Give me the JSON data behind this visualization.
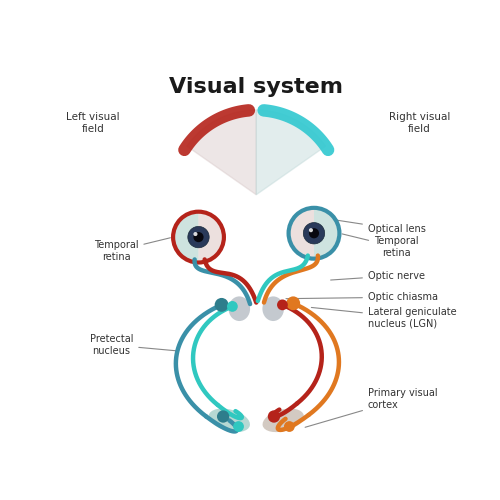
{
  "title": "Visual system",
  "title_fontsize": 16,
  "title_fontweight": "bold",
  "bg_color": "#ffffff",
  "left_field_label": "Left visual\nfield",
  "right_field_label": "Right visual\nfield",
  "labels": {
    "optical_lens": "Optical lens",
    "temporal_retina_left": "Temporal\nretina",
    "temporal_retina_right": "Temporal\nretina",
    "optic_nerve": "Optic nerve",
    "optic_chiasma": "Optic chiasma",
    "lgn": "Lateral geniculate\nnucleus (LGN)",
    "pretectal": "Pretectal\nnucleus",
    "primary_visual": "Primary visual\ncortex"
  },
  "colors": {
    "dark_red": "#b5231a",
    "orange": "#e07820",
    "teal": "#3a90a8",
    "cyan": "#30c8c0",
    "arc_red": "#b5231a",
    "arc_cyan": "#30c8d0",
    "eye_outline_left": "#b5231a",
    "eye_outline_right": "#3a90a8",
    "dot_teal_dark": "#2e7d8c",
    "dot_cyan": "#30c8c0",
    "dot_orange": "#e07820",
    "dot_dark_red": "#b5231a",
    "chiasma_gray": "#b0b8c0",
    "cortex_left": "#7ab8b0",
    "cortex_right": "#b0a090",
    "fan_gray": "#c8c8c8",
    "label_color": "#333333",
    "line_color": "#888888"
  }
}
